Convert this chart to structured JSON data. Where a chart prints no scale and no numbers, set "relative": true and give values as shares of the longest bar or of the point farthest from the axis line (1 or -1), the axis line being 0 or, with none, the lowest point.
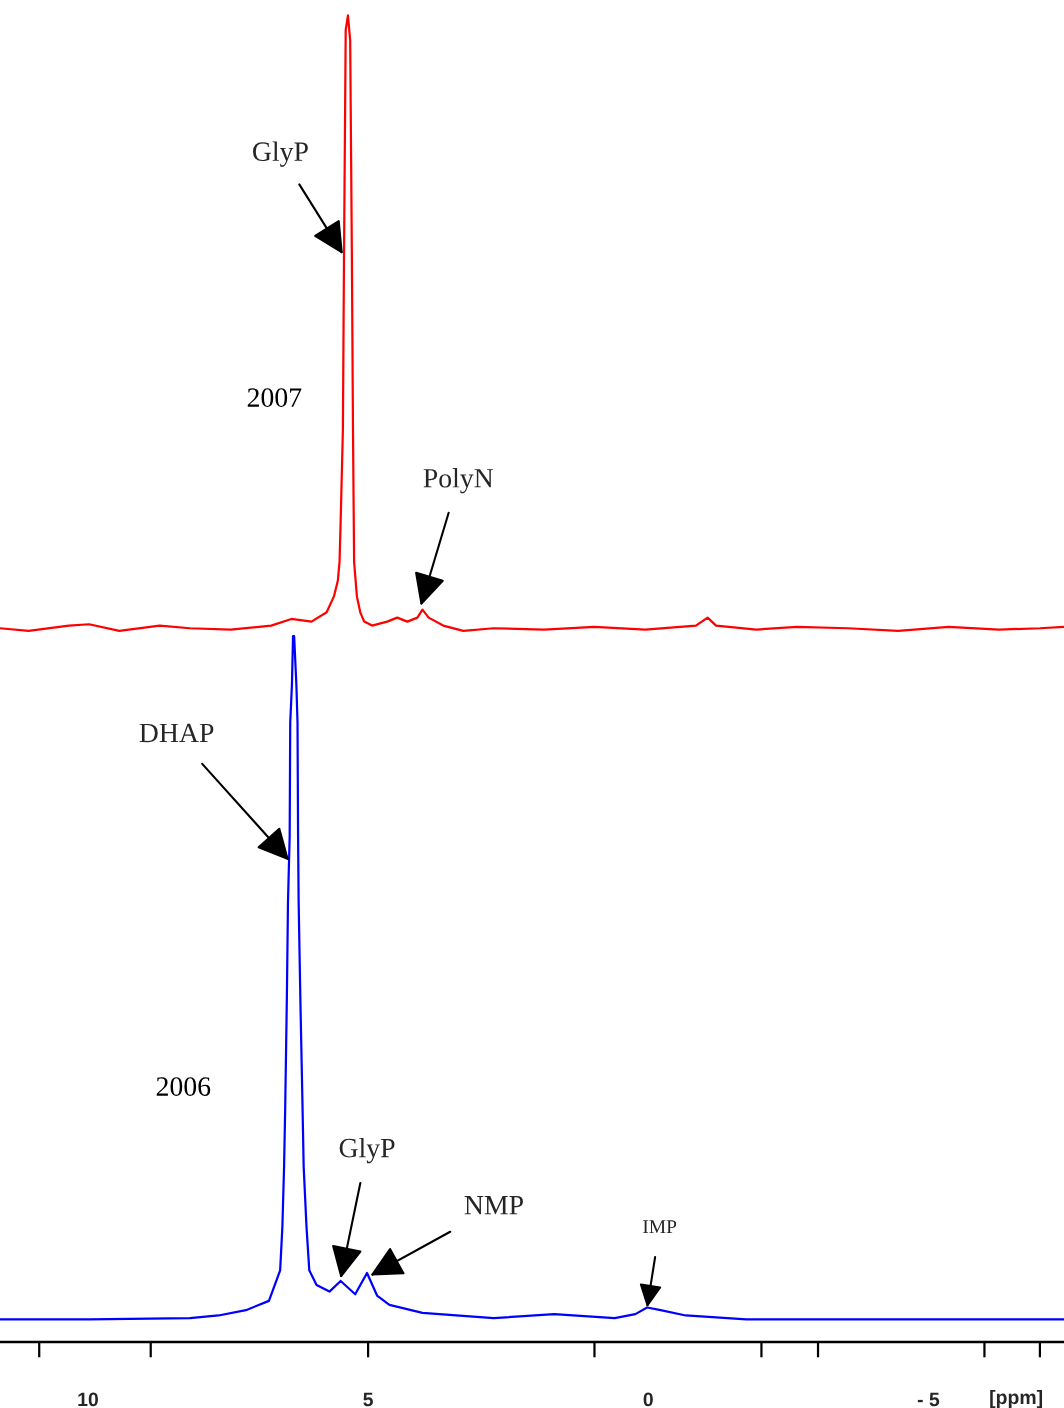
{
  "chart_data": {
    "type": "line",
    "relative": true,
    "xlabel": "[ppm]",
    "tick_labels": "x",
    "xlim": [
      11.57,
      -7.42
    ],
    "xticks": [
      {
        "value": 10,
        "label": "10"
      },
      {
        "value": 5,
        "label": "5"
      },
      {
        "value": 0,
        "label": "0"
      },
      {
        "value": -5,
        "label": "- 5"
      },
      {
        "value": 10.87,
        "label": null
      },
      {
        "value": 8.88,
        "label": null
      },
      {
        "value": 5,
        "label": null
      },
      {
        "value": 0.96,
        "label": null
      },
      {
        "value": -2.02,
        "label": null
      },
      {
        "value": -3.03,
        "label": null
      },
      {
        "value": -6.0,
        "label": null
      },
      {
        "value": -6.99,
        "label": null
      }
    ],
    "series": [
      {
        "name": "2007",
        "color": "#ff0000",
        "x": [
          11.57,
          11.06,
          10.34,
          9.98,
          9.44,
          8.72,
          8.18,
          7.45,
          6.73,
          6.37,
          6.01,
          5.74,
          5.61,
          5.54,
          5.51,
          5.49,
          5.45,
          5.43,
          5.4,
          5.36,
          5.32,
          5.29,
          5.27,
          5.25,
          5.2,
          5.14,
          5.07,
          4.93,
          4.66,
          4.48,
          4.3,
          4.12,
          4.03,
          3.92,
          3.66,
          3.3,
          2.76,
          1.86,
          0.96,
          0.05,
          -0.85,
          -1.06,
          -1.21,
          -1.93,
          -2.65,
          -3.56,
          -4.46,
          -5.36,
          -6.26,
          -6.99,
          -7.42
        ],
        "values": [
          0.538,
          0.536,
          0.54,
          0.541,
          0.536,
          0.54,
          0.538,
          0.537,
          0.54,
          0.545,
          0.543,
          0.55,
          0.562,
          0.574,
          0.588,
          0.619,
          0.688,
          0.82,
          0.989,
          1.0,
          0.981,
          0.82,
          0.688,
          0.588,
          0.562,
          0.55,
          0.543,
          0.54,
          0.543,
          0.546,
          0.543,
          0.546,
          0.552,
          0.546,
          0.54,
          0.536,
          0.538,
          0.537,
          0.539,
          0.537,
          0.54,
          0.546,
          0.54,
          0.537,
          0.539,
          0.538,
          0.536,
          0.539,
          0.537,
          0.538,
          0.539
        ]
      },
      {
        "name": "2006",
        "color": "#0000ff",
        "x": [
          11.57,
          9.98,
          8.18,
          7.67,
          7.18,
          6.77,
          6.57,
          6.53,
          6.5,
          6.48,
          6.45,
          6.43,
          6.4,
          6.39,
          6.36,
          6.34,
          6.32,
          6.28,
          6.26,
          6.25,
          6.24,
          6.21,
          6.17,
          6.15,
          6.1,
          6.05,
          5.92,
          5.69,
          5.49,
          5.23,
          5.02,
          4.84,
          4.62,
          4.03,
          2.76,
          1.68,
          0.6,
          0.23,
          0.02,
          -0.22,
          -0.67,
          -1.75,
          -3.56,
          -6.26,
          -7.42
        ],
        "values": [
          0.017,
          0.017,
          0.018,
          0.02,
          0.024,
          0.031,
          0.054,
          0.087,
          0.132,
          0.176,
          0.26,
          0.332,
          0.381,
          0.467,
          0.495,
          0.532,
          0.532,
          0.495,
          0.467,
          0.381,
          0.332,
          0.26,
          0.176,
          0.132,
          0.087,
          0.054,
          0.043,
          0.038,
          0.046,
          0.036,
          0.052,
          0.035,
          0.028,
          0.022,
          0.018,
          0.021,
          0.018,
          0.021,
          0.026,
          0.024,
          0.02,
          0.017,
          0.017,
          0.017,
          0.017
        ]
      }
    ],
    "annotations": [
      {
        "text": "GlyP",
        "x": 5.45,
        "y": 0.82
      },
      {
        "text": "PolyN",
        "x": 4.06,
        "y": 0.555
      },
      {
        "text": "DHAP",
        "x": 6.41,
        "y": 0.363
      },
      {
        "text": "GlyP",
        "x": 5.49,
        "y": 0.048
      },
      {
        "text": "NMP",
        "x": 4.96,
        "y": 0.05
      },
      {
        "text": "IMP",
        "x": 0.02,
        "y": 0.026
      }
    ]
  }
}
